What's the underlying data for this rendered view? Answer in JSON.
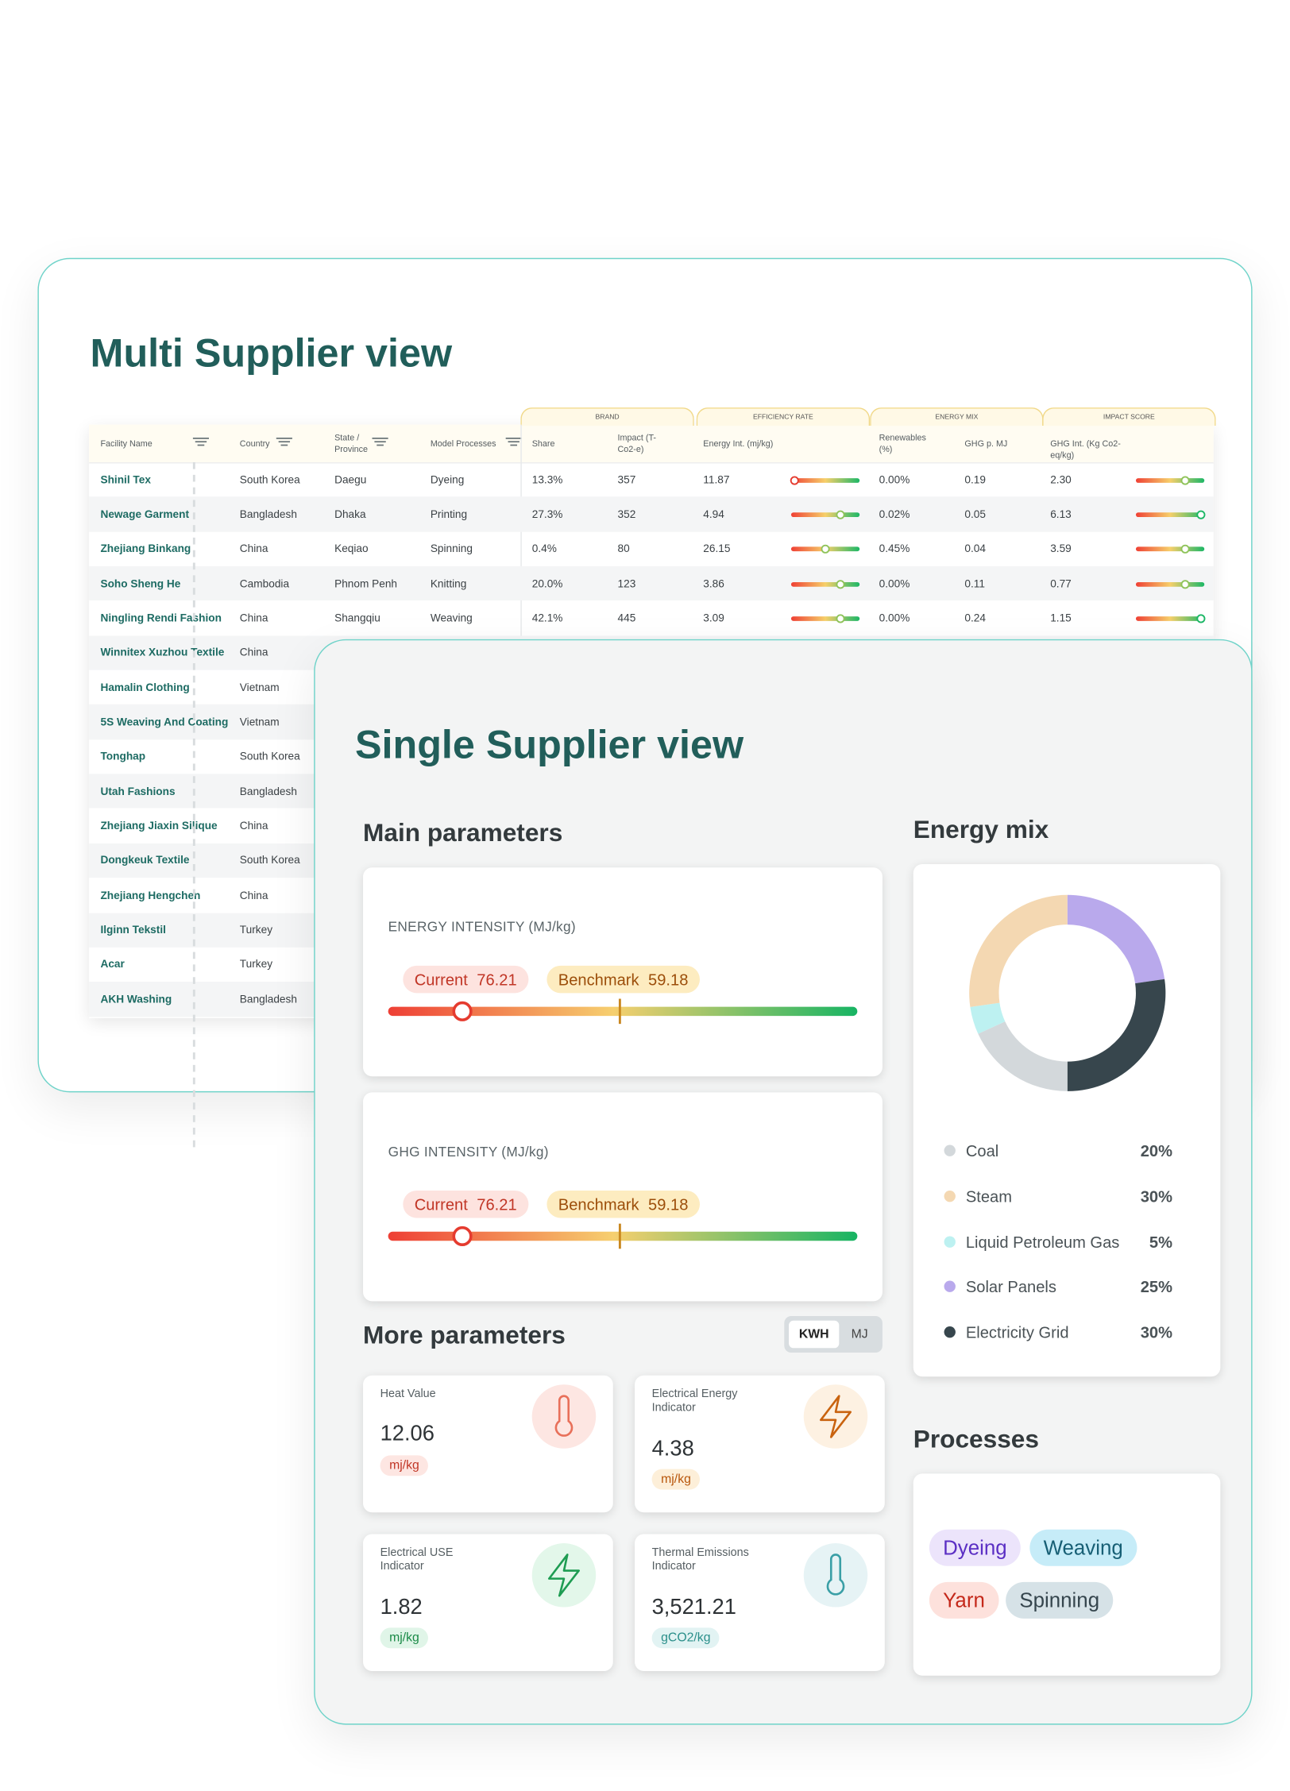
{
  "multi": {
    "title": "Multi Supplier view",
    "groups": [
      "BRAND",
      "EFFICIENCY RATE",
      "ENERGY MIX",
      "IMPACT SCORE"
    ],
    "columns": [
      "Facility Name",
      "Country",
      "State / Province",
      "Model Processes",
      "Share",
      "Impact (T-Co2-e)",
      "Energy Int. (mj/kg)",
      "Renewables (%)",
      "GHG p. MJ",
      "GHG Int. (Kg Co2-eq/kg)"
    ],
    "rows": [
      [
        "Shinil Tex",
        "South Korea",
        "Daegu",
        "Dyeing",
        "13.3%",
        "357",
        "11.87",
        "0.00%",
        "0.19",
        "2.30"
      ],
      [
        "Newage Garment",
        "Bangladesh",
        "Dhaka",
        "Printing",
        "27.3%",
        "352",
        "4.94",
        "0.02%",
        "0.05",
        "6.13"
      ],
      [
        "Zhejiang Binkang",
        "China",
        "Keqiao",
        "Spinning",
        "0.4%",
        "80",
        "26.15",
        "0.45%",
        "0.04",
        "3.59"
      ],
      [
        "Soho Sheng He",
        "Cambodia",
        "Phnom Penh",
        "Knitting",
        "20.0%",
        "123",
        "3.86",
        "0.00%",
        "0.11",
        "0.77"
      ],
      [
        "Ningling Rendi Fashion",
        "China",
        "Shangqiu",
        "Weaving",
        "42.1%",
        "445",
        "3.09",
        "0.00%",
        "0.24",
        "1.15"
      ],
      [
        "Winnitex Xuzhou Textile",
        "China"
      ],
      [
        "Hamalin Clothing",
        "Vietnam"
      ],
      [
        "5S Weaving And Coating",
        "Vietnam"
      ],
      [
        "Tonghap",
        "South Korea"
      ],
      [
        "Utah Fashions",
        "Bangladesh"
      ],
      [
        "Zhejiang Jiaxin Silique",
        "China"
      ],
      [
        "Dongkeuk Textile",
        "South Korea"
      ],
      [
        "Zhejiang Hengchen",
        "China"
      ],
      [
        "Ilginn Tekstil",
        "Turkey"
      ],
      [
        "Acar",
        "Turkey"
      ],
      [
        "AKH Washing",
        "Bangladesh"
      ]
    ]
  },
  "single": {
    "title": "Single Supplier view",
    "main_title": "Main parameters",
    "main": [
      {
        "label": "ENERGY INTENSITY (MJ/kg)",
        "current_label": "Current",
        "current": "76.21",
        "benchmark_label": "Benchmark",
        "benchmark": "59.18"
      },
      {
        "label": "GHG INTENSITY (MJ/kg)",
        "current_label": "Current",
        "current": "76.21",
        "benchmark_label": "Benchmark",
        "benchmark": "59.18"
      }
    ],
    "more_title": "More parameters",
    "toggle": [
      "KWH",
      "MJ"
    ],
    "metrics": [
      {
        "label": "Heat Value",
        "value": "12.06",
        "unit": "mj/kg"
      },
      {
        "label": "Electrical Energy Indicator",
        "value": "4.38",
        "unit": "mj/kg"
      },
      {
        "label": "Electrical USE Indicator",
        "value": "1.82",
        "unit": "mj/kg"
      },
      {
        "label": "Thermal Emissions Indicator",
        "value": "3,521.21",
        "unit": "gCO2/kg"
      }
    ],
    "energy_mix": {
      "title": "Energy mix",
      "items": [
        {
          "name": "Coal",
          "value": 20,
          "label": "20%",
          "color": "#d3d8db"
        },
        {
          "name": "Steam",
          "value": 30,
          "label": "30%",
          "color": "#f4d8b2"
        },
        {
          "name": "Liquid Petroleum Gas",
          "value": 5,
          "label": "5%",
          "color": "#bdf1f1"
        },
        {
          "name": "Solar Panels",
          "value": 25,
          "label": "25%",
          "color": "#b9a9ec"
        },
        {
          "name": "Electricity Grid",
          "value": 30,
          "label": "30%",
          "color": "#37464d"
        }
      ]
    },
    "processes_title": "Processes",
    "processes": [
      "Dyeing",
      "Weaving",
      "Yarn",
      "Spinning"
    ]
  }
}
